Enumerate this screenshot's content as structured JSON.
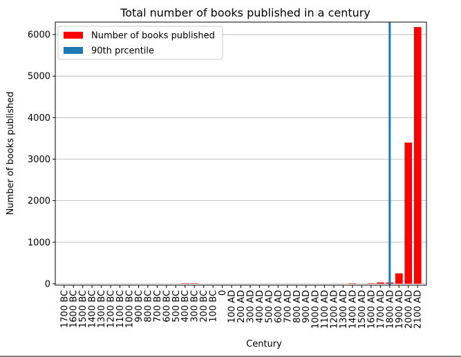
{
  "chart_data": {
    "type": "bar",
    "title": "Total number of books published in a century",
    "xlabel": "Century",
    "ylabel": "Number of books published",
    "categories": [
      "1700 BC",
      "1600 BC",
      "1500 BC",
      "1400 BC",
      "1300 BC",
      "1200 BC",
      "1100 BC",
      "1000 BC",
      "900 BC",
      "800 BC",
      "700 BC",
      "600 BC",
      "500 BC",
      "400 BC",
      "300 BC",
      "200 BC",
      "100 BC",
      "0",
      "100 AD",
      "200 AD",
      "300 AD",
      "400 AD",
      "500 AD",
      "600 AD",
      "700 AD",
      "800 AD",
      "900 AD",
      "1000 AD",
      "1100 AD",
      "1200 AD",
      "1300 AD",
      "1400 AD",
      "1500 AD",
      "1600 AD",
      "1700 AD",
      "1800 AD",
      "1900 AD",
      "2000 AD",
      "2100 AD"
    ],
    "series": [
      {
        "name": "Number of books published",
        "color": "#ff0000",
        "values": [
          0,
          0,
          0,
          0,
          0,
          0,
          0,
          0,
          0,
          0,
          0,
          0,
          0,
          10,
          10,
          0,
          0,
          0,
          0,
          0,
          0,
          0,
          0,
          0,
          0,
          0,
          0,
          0,
          0,
          0,
          0,
          10,
          0,
          10,
          30,
          30,
          250,
          3400,
          6180
        ]
      }
    ],
    "percentile_line": {
      "name": "90th prcentile",
      "color": "#1f77b4",
      "x": "1800 AD"
    },
    "ylim": [
      -35,
      6300
    ],
    "yticks": [
      0,
      1000,
      2000,
      3000,
      4000,
      5000,
      6000
    ],
    "grid": true,
    "legend": "upper left"
  }
}
